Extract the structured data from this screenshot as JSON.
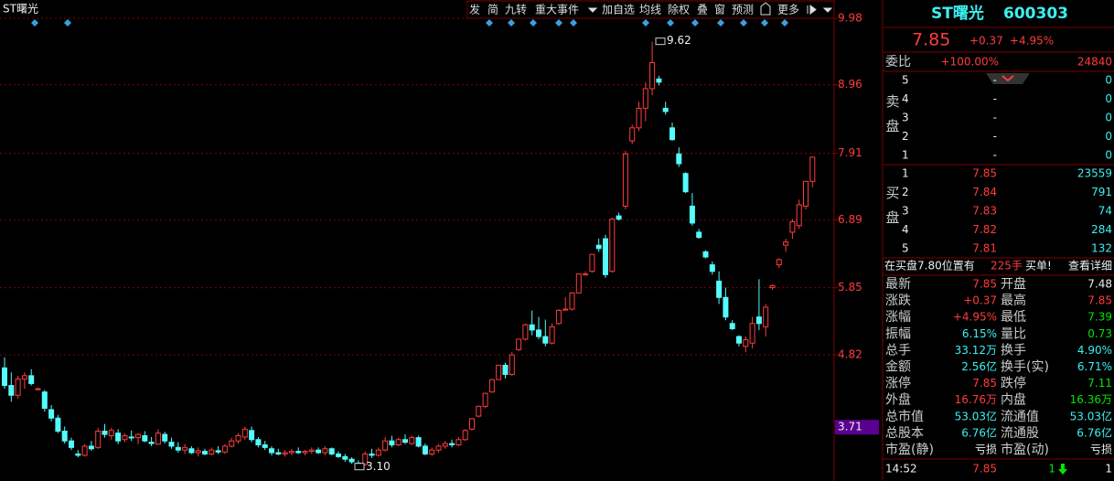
{
  "chart_data": {
    "type": "candlestick",
    "title": "ST曙光",
    "ylim": [
      3.04,
      10.26
    ],
    "yticks": [
      9.98,
      8.96,
      7.91,
      6.89,
      5.85,
      4.82
    ],
    "price_marker": 3.71,
    "high_label": 9.62,
    "low_label": {
      "value": 3.1,
      "label": "3.10"
    },
    "grid": true,
    "up_color": "#ff3c3c",
    "down_color": "#54fcfc",
    "candles": [
      [
        4.62,
        4.78,
        4.3,
        4.35
      ],
      [
        4.35,
        4.55,
        4.1,
        4.2
      ],
      [
        4.2,
        4.5,
        4.15,
        4.45
      ],
      [
        4.45,
        4.55,
        4.3,
        4.5
      ],
      [
        4.5,
        4.6,
        4.35,
        4.38
      ],
      [
        4.3,
        4.32,
        4.28,
        4.3
      ],
      [
        4.25,
        4.28,
        3.95,
        4.0
      ],
      [
        3.98,
        4.05,
        3.8,
        3.85
      ],
      [
        3.85,
        3.9,
        3.62,
        3.65
      ],
      [
        3.65,
        3.72,
        3.46,
        3.5
      ],
      [
        3.5,
        3.55,
        3.36,
        3.4
      ],
      [
        3.3,
        3.36,
        3.25,
        3.28
      ],
      [
        3.28,
        3.45,
        3.26,
        3.42
      ],
      [
        3.42,
        3.5,
        3.35,
        3.38
      ],
      [
        3.4,
        3.7,
        3.38,
        3.65
      ],
      [
        3.65,
        3.76,
        3.55,
        3.6
      ],
      [
        3.58,
        3.7,
        3.52,
        3.66
      ],
      [
        3.62,
        3.68,
        3.45,
        3.5
      ],
      [
        3.52,
        3.62,
        3.48,
        3.58
      ],
      [
        3.56,
        3.66,
        3.5,
        3.55
      ],
      [
        3.55,
        3.62,
        3.45,
        3.6
      ],
      [
        3.58,
        3.65,
        3.48,
        3.5
      ],
      [
        3.48,
        3.56,
        3.42,
        3.46
      ],
      [
        3.45,
        3.68,
        3.44,
        3.62
      ],
      [
        3.6,
        3.64,
        3.46,
        3.5
      ],
      [
        3.48,
        3.55,
        3.38,
        3.42
      ],
      [
        3.4,
        3.48,
        3.32,
        3.36
      ],
      [
        3.36,
        3.45,
        3.3,
        3.4
      ],
      [
        3.38,
        3.42,
        3.3,
        3.32
      ],
      [
        3.32,
        3.4,
        3.26,
        3.35
      ],
      [
        3.34,
        3.38,
        3.28,
        3.3
      ],
      [
        3.3,
        3.4,
        3.28,
        3.36
      ],
      [
        3.35,
        3.42,
        3.3,
        3.33
      ],
      [
        3.33,
        3.45,
        3.3,
        3.42
      ],
      [
        3.42,
        3.55,
        3.4,
        3.5
      ],
      [
        3.5,
        3.62,
        3.46,
        3.58
      ],
      [
        3.56,
        3.72,
        3.52,
        3.68
      ],
      [
        3.66,
        3.72,
        3.48,
        3.52
      ],
      [
        3.52,
        3.56,
        3.4,
        3.44
      ],
      [
        3.44,
        3.5,
        3.36,
        3.4
      ],
      [
        3.38,
        3.42,
        3.28,
        3.32
      ],
      [
        3.32,
        3.38,
        3.28,
        3.3
      ],
      [
        3.3,
        3.36,
        3.26,
        3.32
      ],
      [
        3.32,
        3.38,
        3.28,
        3.34
      ],
      [
        3.34,
        3.4,
        3.3,
        3.32
      ],
      [
        3.32,
        3.36,
        3.28,
        3.34
      ],
      [
        3.34,
        3.4,
        3.3,
        3.36
      ],
      [
        3.36,
        3.4,
        3.3,
        3.32
      ],
      [
        3.32,
        3.42,
        3.28,
        3.38
      ],
      [
        3.38,
        3.4,
        3.28,
        3.3
      ],
      [
        3.3,
        3.34,
        3.24,
        3.26
      ],
      [
        3.26,
        3.3,
        3.18,
        3.22
      ],
      [
        3.22,
        3.25,
        3.15,
        3.18
      ],
      [
        3.16,
        3.2,
        3.1,
        3.14
      ],
      [
        3.14,
        3.34,
        3.12,
        3.3
      ],
      [
        3.3,
        3.38,
        3.24,
        3.28
      ],
      [
        3.28,
        3.4,
        3.26,
        3.36
      ],
      [
        3.36,
        3.56,
        3.34,
        3.5
      ],
      [
        3.5,
        3.58,
        3.4,
        3.44
      ],
      [
        3.44,
        3.55,
        3.42,
        3.52
      ],
      [
        3.52,
        3.6,
        3.45,
        3.48
      ],
      [
        3.46,
        3.58,
        3.44,
        3.55
      ],
      [
        3.55,
        3.58,
        3.4,
        3.42
      ],
      [
        3.42,
        3.46,
        3.28,
        3.3
      ],
      [
        3.3,
        3.4,
        3.27,
        3.36
      ],
      [
        3.36,
        3.45,
        3.32,
        3.42
      ],
      [
        3.42,
        3.5,
        3.38,
        3.46
      ],
      [
        3.46,
        3.52,
        3.4,
        3.44
      ],
      [
        3.44,
        3.56,
        3.42,
        3.52
      ],
      [
        3.52,
        3.68,
        3.5,
        3.66
      ],
      [
        3.68,
        3.85,
        3.66,
        3.84
      ],
      [
        3.88,
        4.04,
        3.86,
        4.03
      ],
      [
        4.03,
        4.24,
        4.0,
        4.23
      ],
      [
        4.25,
        4.45,
        4.24,
        4.44
      ],
      [
        4.44,
        4.66,
        4.44,
        4.66
      ],
      [
        4.66,
        4.7,
        4.46,
        4.52
      ],
      [
        4.52,
        4.86,
        4.5,
        4.82
      ],
      [
        4.9,
        5.06,
        4.88,
        5.06
      ],
      [
        5.06,
        5.3,
        5.04,
        5.28
      ],
      [
        5.28,
        5.5,
        5.12,
        5.2
      ],
      [
        5.2,
        5.4,
        5.06,
        5.1
      ],
      [
        5.1,
        5.36,
        4.95,
        5.0
      ],
      [
        5.0,
        5.3,
        4.98,
        5.25
      ],
      [
        5.3,
        5.52,
        5.28,
        5.5
      ],
      [
        5.52,
        5.7,
        5.5,
        5.52
      ],
      [
        5.52,
        5.78,
        5.5,
        5.77
      ],
      [
        5.77,
        6.06,
        5.76,
        6.06
      ],
      [
        6.06,
        6.1,
        6.05,
        6.06
      ],
      [
        6.1,
        6.36,
        6.08,
        6.36
      ],
      [
        6.5,
        6.6,
        6.4,
        6.45
      ],
      [
        6.6,
        6.66,
        6.0,
        6.05
      ],
      [
        6.1,
        6.92,
        6.08,
        6.9
      ],
      [
        6.95,
        7.0,
        6.88,
        6.9
      ],
      [
        7.1,
        7.95,
        7.05,
        7.9
      ],
      [
        8.1,
        8.35,
        8.05,
        8.3
      ],
      [
        8.3,
        8.7,
        8.25,
        8.6
      ],
      [
        8.6,
        9.0,
        8.4,
        8.9
      ],
      [
        8.9,
        9.62,
        8.8,
        9.3
      ],
      [
        9.05,
        9.1,
        8.95,
        9.0
      ],
      [
        8.6,
        8.7,
        8.5,
        8.55
      ],
      [
        8.3,
        8.38,
        8.1,
        8.12
      ],
      [
        7.9,
        8.0,
        7.7,
        7.75
      ],
      [
        7.6,
        7.62,
        7.3,
        7.32
      ],
      [
        7.1,
        7.3,
        6.8,
        6.84
      ],
      [
        6.7,
        6.75,
        6.6,
        6.62
      ],
      [
        6.4,
        6.42,
        6.3,
        6.32
      ],
      [
        6.2,
        6.25,
        6.05,
        6.1
      ],
      [
        5.95,
        6.1,
        5.6,
        5.7
      ],
      [
        5.7,
        5.85,
        5.35,
        5.4
      ],
      [
        5.3,
        5.35,
        5.2,
        5.22
      ],
      [
        5.1,
        5.12,
        4.95,
        5.0
      ],
      [
        4.95,
        5.1,
        4.86,
        5.05
      ],
      [
        5.0,
        5.4,
        4.92,
        5.3
      ],
      [
        5.4,
        5.98,
        5.2,
        5.3
      ],
      [
        5.25,
        5.6,
        5.1,
        5.55
      ],
      [
        5.85,
        5.9,
        5.82,
        5.88
      ],
      [
        6.2,
        6.3,
        6.15,
        6.28
      ],
      [
        6.5,
        6.6,
        6.4,
        6.55
      ],
      [
        6.7,
        6.9,
        6.6,
        6.86
      ],
      [
        6.8,
        7.2,
        6.75,
        7.12
      ],
      [
        7.1,
        7.48,
        7.05,
        7.48
      ],
      [
        7.48,
        7.85,
        7.39,
        7.85
      ]
    ]
  },
  "toolbar": [
    "发",
    "简",
    "九转",
    "重大事件",
    "加自选",
    "均线",
    "除权",
    "叠",
    "窗",
    "预测",
    "更多"
  ],
  "quote_panel": {
    "name": "ST曙光",
    "code": "600303",
    "price": "7.85",
    "change": "+0.37",
    "change_pct": "+4.95%",
    "order_ratio": {
      "label": "委比",
      "ratio": "+100.00%",
      "diff": "24840"
    },
    "sell_label": "卖盘",
    "buy_label": "买盘",
    "sell": [
      [
        "5",
        "-",
        "0"
      ],
      [
        "4",
        "-",
        "0"
      ],
      [
        "3",
        "-",
        "0"
      ],
      [
        "2",
        "-",
        "0"
      ],
      [
        "1",
        "-",
        "0"
      ]
    ],
    "buy": [
      [
        "1",
        "7.85",
        "23559"
      ],
      [
        "2",
        "7.84",
        "791"
      ],
      [
        "3",
        "7.83",
        "74"
      ],
      [
        "4",
        "7.82",
        "284"
      ],
      [
        "5",
        "7.81",
        "132"
      ]
    ],
    "notice": {
      "text": "在买盘7.80位置有",
      "volume": "225手",
      "type": "买单!",
      "link": "查看详细"
    },
    "stats": [
      [
        "最新",
        "7.85",
        "开盘",
        "7.48"
      ],
      [
        "涨跌",
        "+0.37",
        "最高",
        "7.85"
      ],
      [
        "涨幅",
        "+4.95%",
        "最低",
        "7.39"
      ],
      [
        "振幅",
        "6.15%",
        "量比",
        "0.73"
      ],
      [
        "总手",
        "33.12万",
        "换手",
        "4.90%"
      ],
      [
        "金额",
        "2.56亿",
        "换手(实)",
        "6.71%"
      ],
      [
        "涨停",
        "7.85",
        "跌停",
        "7.11"
      ],
      [
        "外盘",
        "16.76万",
        "内盘",
        "16.36万"
      ],
      [
        "总市值",
        "53.03亿",
        "流通值",
        "53.03亿"
      ],
      [
        "总股本",
        "6.76亿",
        "流通股",
        "6.76亿"
      ],
      [
        "市盈(静)",
        "亏损",
        "市盈(动)",
        "亏损"
      ]
    ],
    "tick": [
      "14:52",
      "7.85",
      "1",
      "1"
    ]
  }
}
